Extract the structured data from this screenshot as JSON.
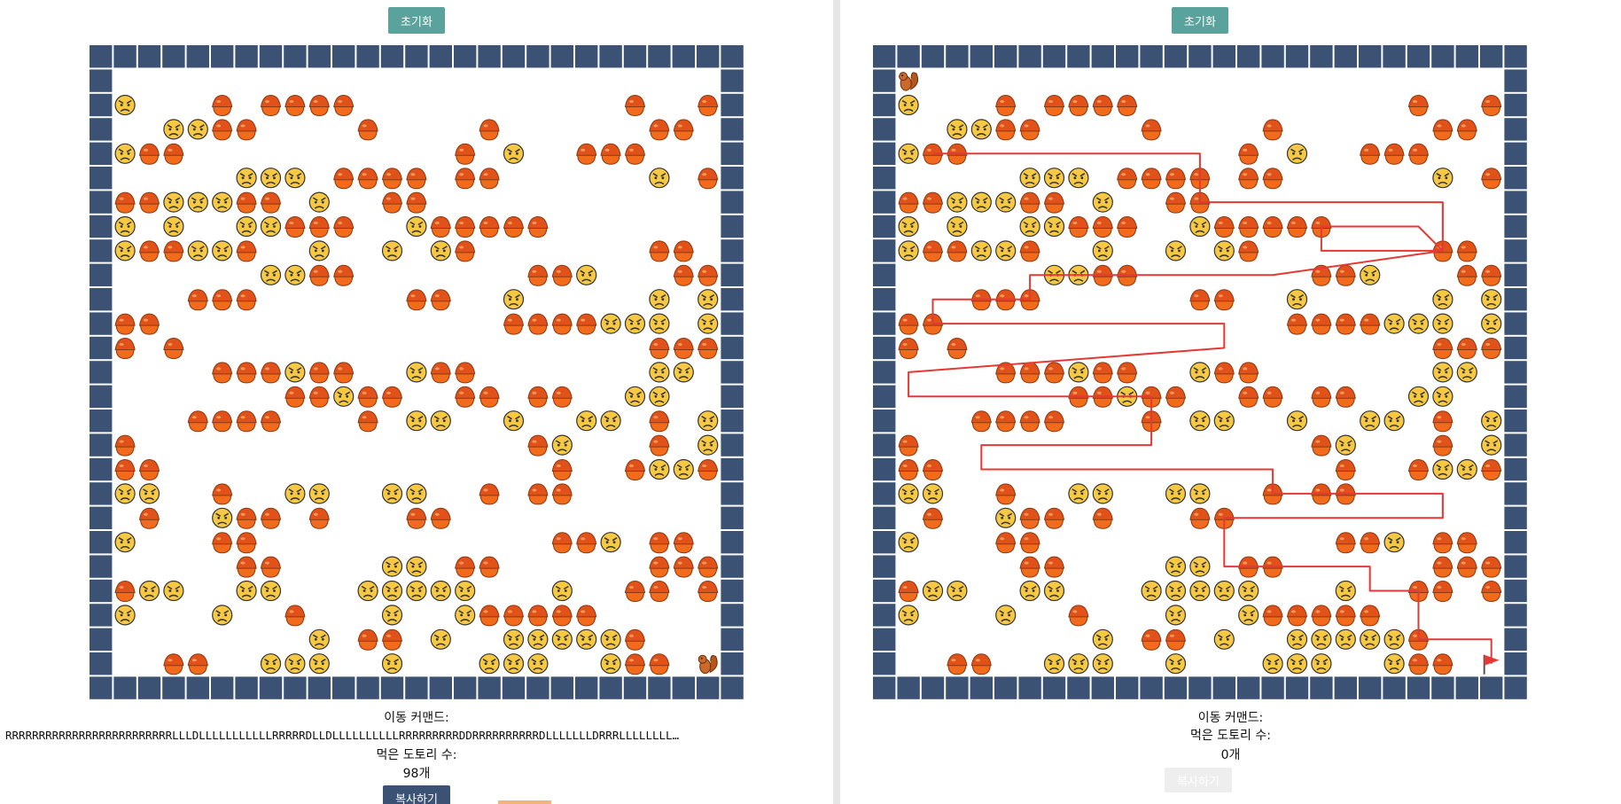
{
  "left": {
    "reset_label": "초기화",
    "command_label": "이동 커맨드:",
    "command_value": "RRRRRRRRRRRRRRRRRRRRRRRRRLLLDLLLLLLLLLLLRRRRRDLLDLLLLLLLLLLRRRRRRRRRDDRRRRRRRRRRDLLLLLLLDRRRLLLLLLLL…",
    "acorn_count_label": "먹은 도토리 수:",
    "acorn_count_value": "98개",
    "copy_label": "복사하기",
    "board_rows": [
      "###########################",
      "#                        S#",
      "#A   F FFFF           F  F#",
      "#  AAFF    F    F      FF#",
      "#AFF           F A  FFF  #",
      "#     AAA FFFF FF      A FF#",
      "#FFAAAFF A  FF           #",
      "#A A  AAFFF  AFFFFF      #",
      "#AFFAAF  A  A AF       FF#",
      "#      AAFF       FFA   FF#",
      "#   FFF      FF  A     A A#",
      "#FF              FFFFAAA AAA#",
      "#F F                   FFF A#",
      "#    FFFAFF  AFF       AA#",
      "#       FFAFF  FF FF  AA  A#",
      "#   FFFF   F AA  A  AA F A#",
      "#F                FA   F AA#",
      "#FF                F  FAAF #",
      "#AA  F  AA  AA  F FF     #",
      "# F  AFF F   FF          #",
      "#A   FF            FFA FF A#",
      "#     FF    AA FF      FFF#",
      "#FAA  AA   AAAAA   A  FF FFF#",
      "#A   A  F   A  AFFFFF     #",
      "#        A FF A  AAAAAF   #",
      "#  FF  AAA  A   AAA  AFF  FS#",
      "###########################"
    ]
  },
  "right": {
    "reset_label": "초기화",
    "command_label": "이동 커맨드:",
    "acorn_count_label": "먹은 도토리 수:",
    "acorn_count_value": "0개",
    "copy_label": "복사하기"
  },
  "legend": {
    "wall": "wall-tile",
    "acorn": "acorn-icon",
    "angry": "angry-face-icon",
    "squirrel": "squirrel-icon",
    "flag": "red-flag-icon"
  },
  "colors": {
    "wall": "#3b5275",
    "reset_button": "#5aa39c",
    "path": "#e53935",
    "acorn_top": "#8a3a12",
    "acorn_body": "#f26a1b",
    "face": "#f7c842"
  }
}
